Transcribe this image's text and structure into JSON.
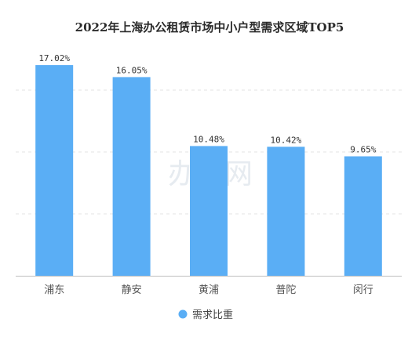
{
  "chart_data": {
    "type": "bar",
    "title": "2022年上海办公租赁市场中小户型需求区域TOP5",
    "categories": [
      "浦东",
      "静安",
      "黄浦",
      "普陀",
      "闵行"
    ],
    "series": [
      {
        "name": "需求比重",
        "values": [
          17.02,
          16.05,
          10.48,
          10.42,
          9.65
        ]
      }
    ],
    "value_labels": [
      "17.02%",
      "16.05%",
      "10.48%",
      "10.42%",
      "9.65%"
    ],
    "xlabel": "",
    "ylabel": "",
    "ylim": [
      0,
      20
    ],
    "grid": true,
    "legend_position": "bottom-center",
    "bar_color": "#5aaef5"
  },
  "watermark_text": "办办网"
}
